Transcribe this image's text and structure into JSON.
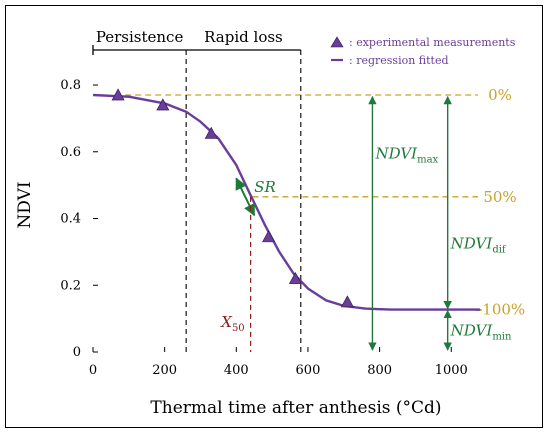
{
  "chart_data": {
    "type": "line",
    "xlabel": "Thermal time after anthesis (°Cd)",
    "ylabel": "NDVI",
    "xlim": [
      0,
      1150
    ],
    "ylim": [
      0,
      0.86
    ],
    "x_ticks": [
      "0",
      "200",
      "400",
      "600",
      "800",
      "1000"
    ],
    "y_ticks": [
      "0",
      "0.2",
      "0.4",
      "0.6",
      "0.8"
    ],
    "series": [
      {
        "name": ": experimental measurements",
        "type": "scatter",
        "x": [
          70,
          195,
          330,
          490,
          565,
          710
        ],
        "y": [
          0.77,
          0.74,
          0.655,
          0.345,
          0.22,
          0.15
        ]
      },
      {
        "name": ": regression fitted",
        "type": "line",
        "x": [
          0,
          100,
          200,
          260,
          300,
          350,
          400,
          440,
          480,
          520,
          560,
          600,
          650,
          700,
          760,
          830,
          900,
          1000,
          1080
        ],
        "y": [
          0.77,
          0.765,
          0.745,
          0.72,
          0.69,
          0.64,
          0.56,
          0.47,
          0.38,
          0.3,
          0.235,
          0.19,
          0.155,
          0.138,
          0.13,
          0.127,
          0.127,
          0.127,
          0.127
        ]
      }
    ],
    "phases": [
      {
        "label": "Persistence",
        "x_start": 0,
        "x_end": 260
      },
      {
        "label": "Rapid loss",
        "x_start": 260,
        "x_end": 580
      }
    ],
    "reference_lines": [
      {
        "label": "0%",
        "y": 0.77
      },
      {
        "label": "50%",
        "y": 0.465
      },
      {
        "label": "100%",
        "y": 0.127
      }
    ],
    "annotations": {
      "sr": "SR",
      "x50_main": "X",
      "x50_sub": "50",
      "x50_value": 440,
      "ndvi_max_main": "NDVI",
      "ndvi_max_sub": "max",
      "ndvi_max_x": 780,
      "ndvi_dif_main": "NDVI",
      "ndvi_dif_sub": "dif",
      "ndvi_min_main": "NDVI",
      "ndvi_min_sub": "min",
      "ndvi_dif_x": 990
    },
    "colors": {
      "curve": "#6a3d9a",
      "marker": "#6a3d9a",
      "reference": "#c9a227",
      "annotation": "#1f7a3a",
      "x50": "#8b1a1a"
    },
    "legend_position": "top-right"
  }
}
